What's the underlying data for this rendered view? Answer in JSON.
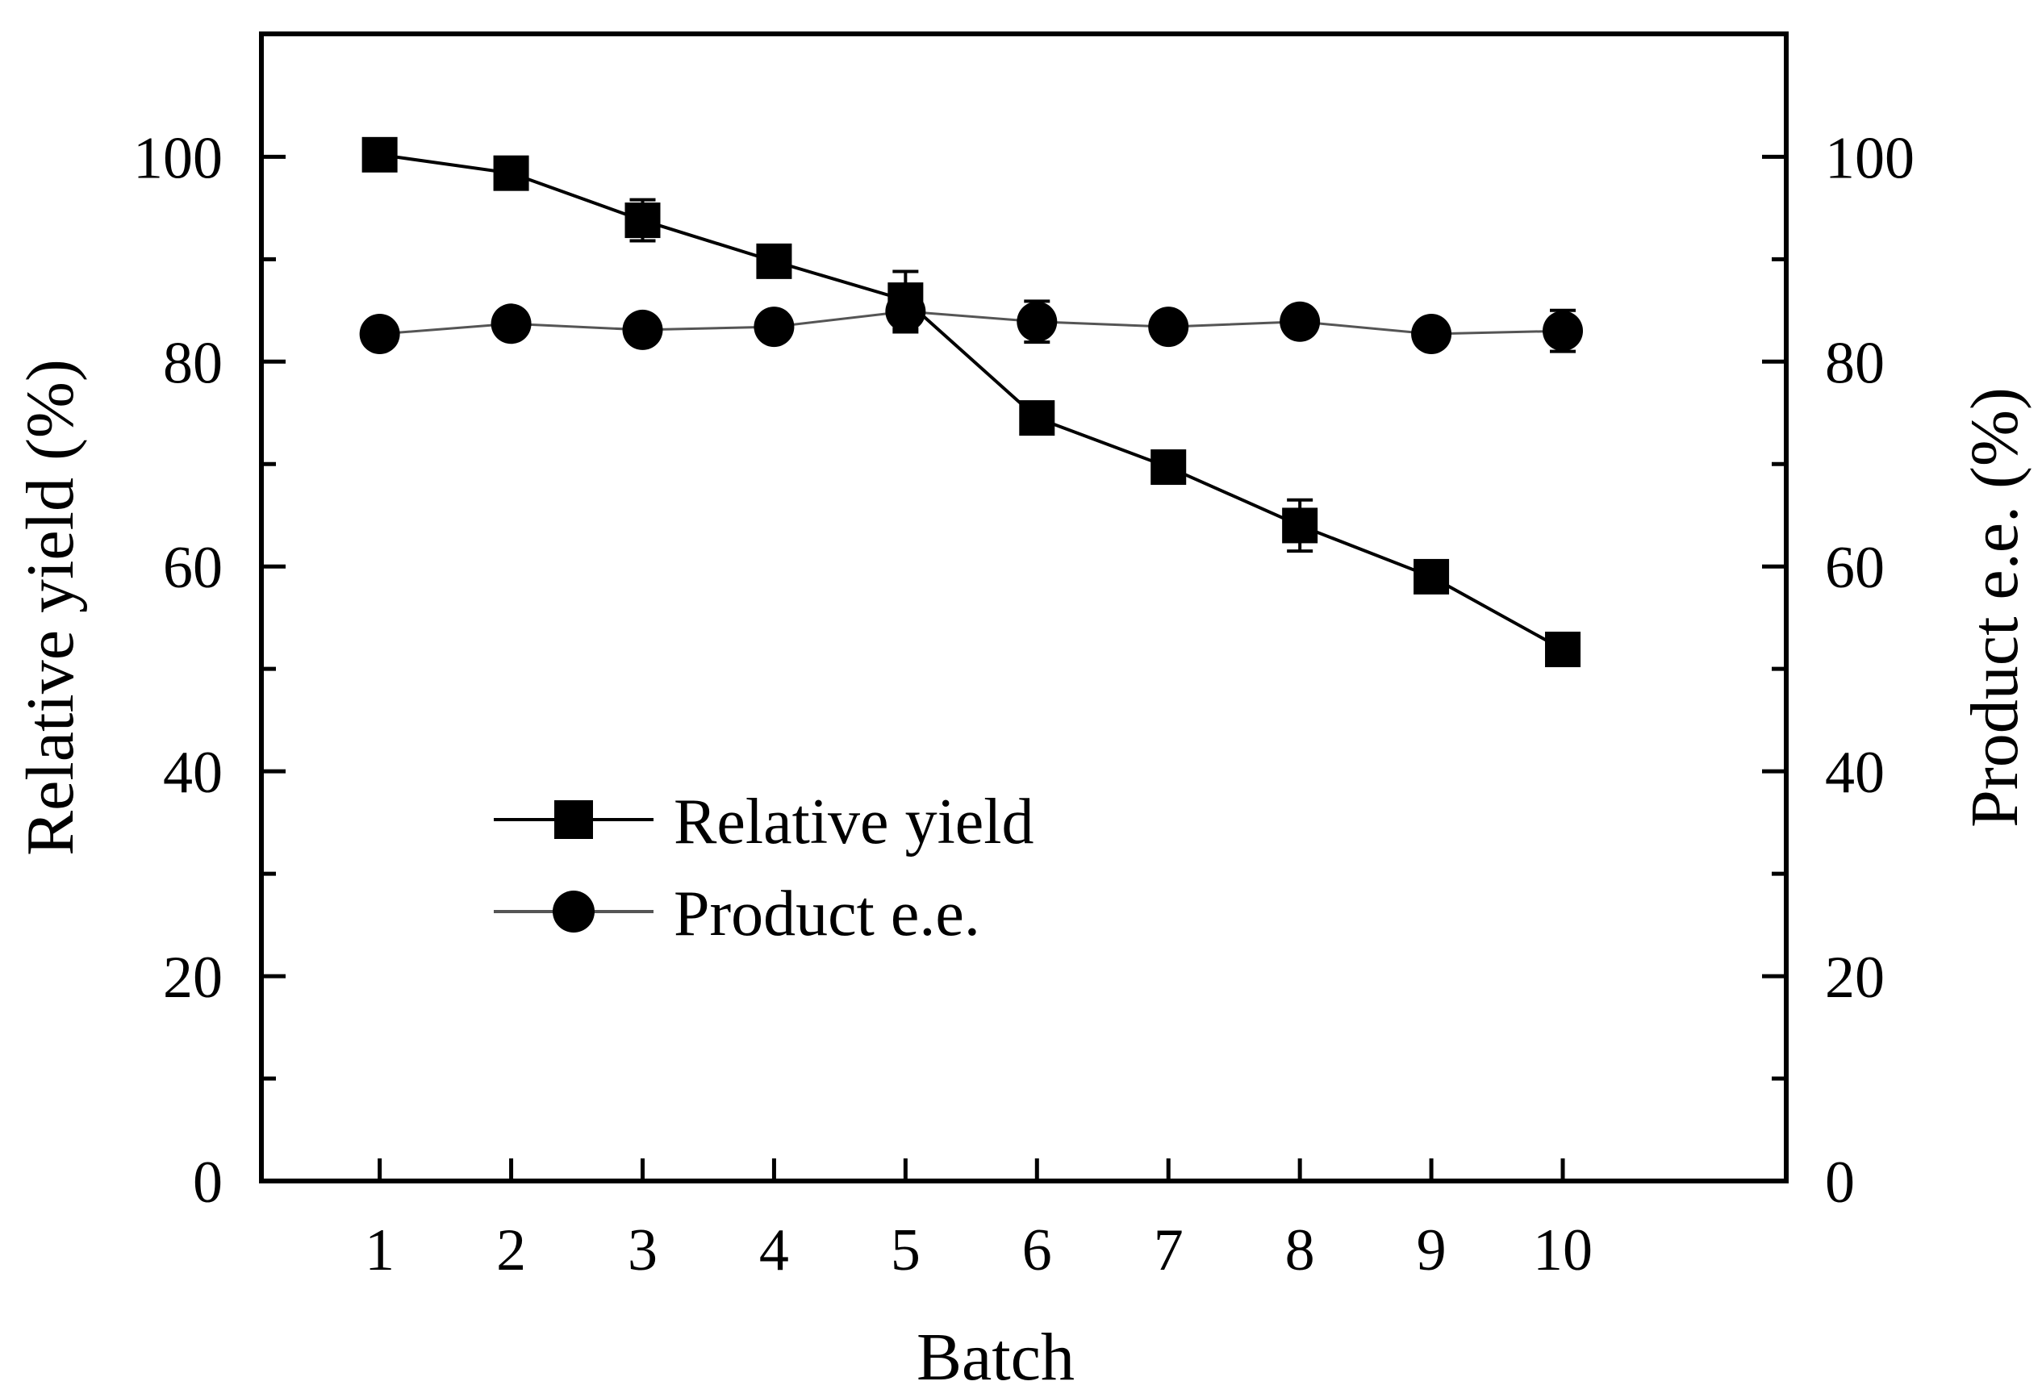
{
  "chart_data": {
    "type": "line",
    "xlabel": "Batch",
    "ylabel": "Relative yield (%)",
    "y2label": "Product e.e. (%)",
    "categories": [
      1,
      2,
      3,
      4,
      5,
      6,
      7,
      8,
      9,
      10
    ],
    "x_tick_labels": [
      "1",
      "2",
      "3",
      "4",
      "5",
      "6",
      "7",
      "8",
      "9",
      "10"
    ],
    "xlim": [
      0.1,
      11.7
    ],
    "ylim": [
      0,
      112
    ],
    "y2lim": [
      0,
      112
    ],
    "y_ticks": [
      0,
      20,
      40,
      60,
      80,
      100
    ],
    "y_tick_labels": [
      "0",
      "20",
      "40",
      "60",
      "80",
      "100"
    ],
    "y2_tick_labels": [
      "0",
      "20",
      "40",
      "60",
      "80",
      "100"
    ],
    "series": [
      {
        "name": "Relative yield",
        "axis": "left",
        "marker": "square",
        "color": "#000000",
        "line_color": "#000000",
        "values": [
          100.2,
          98.4,
          93.8,
          89.8,
          86.0,
          74.5,
          69.7,
          64.0,
          59.0,
          51.9
        ],
        "errors": [
          0.8,
          1.0,
          2.0,
          0.8,
          2.8,
          1.0,
          1.0,
          2.5,
          0.8,
          0.8
        ]
      },
      {
        "name": "Product e.e.",
        "axis": "right",
        "marker": "circle",
        "color": "#000000",
        "line_color": "#555555",
        "values": [
          82.7,
          83.7,
          83.1,
          83.4,
          84.9,
          83.9,
          83.4,
          83.9,
          82.7,
          83.0
        ],
        "errors": [
          1.0,
          1.0,
          0.8,
          1.0,
          2.0,
          2.0,
          0.8,
          0.8,
          1.0,
          2.0
        ]
      }
    ],
    "legend": {
      "position": "center-left",
      "entries": [
        "Relative yield",
        "Product e.e."
      ]
    },
    "grid": false
  }
}
